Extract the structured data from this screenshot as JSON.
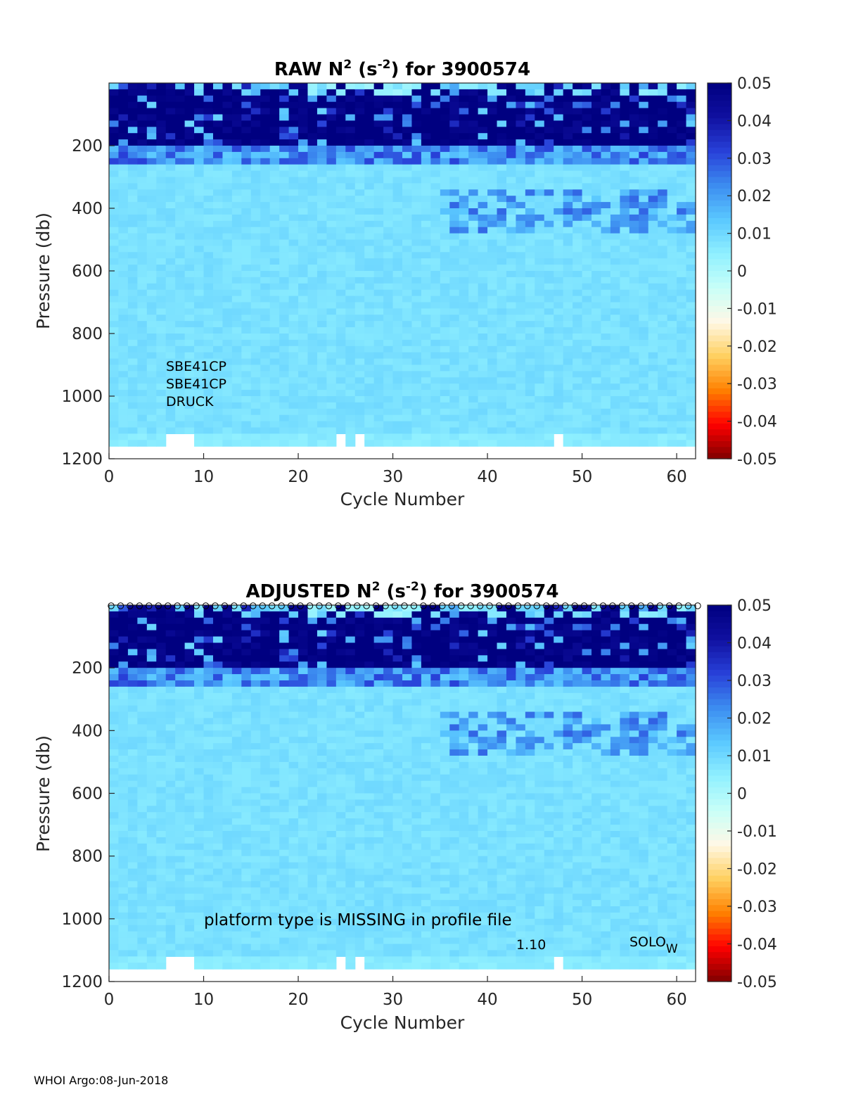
{
  "footer": "WHOI Argo:08-Jun-2018",
  "colors": {
    "cmap": [
      "#800000",
      "#ff0000",
      "#ff8000",
      "#ffd060",
      "#fff8e6",
      "#c8fff8",
      "#8ff0ff",
      "#5ac8ff",
      "#3c8cf0",
      "#2840d8",
      "#1010a0",
      "#000080"
    ]
  },
  "chart_data": [
    {
      "type": "heatmap",
      "title_main": "RAW N",
      "title_sup": "2",
      "title_unit_open": " (s",
      "title_unit_sup": "-2",
      "title_rest": ") for 3900574",
      "xlabel": "Cycle Number",
      "ylabel": "Pressure (db)",
      "xlim": [
        0,
        62
      ],
      "ylim": [
        0,
        1200
      ],
      "y_reversed": true,
      "xticks": [
        0,
        10,
        20,
        30,
        40,
        50,
        60
      ],
      "yticks": [
        200,
        400,
        600,
        800,
        1000,
        1200
      ],
      "colorbar": {
        "min": -0.05,
        "max": 0.05,
        "ticks": [
          "0.05",
          "0.04",
          "0.03",
          "0.02",
          "0.01",
          "0",
          "-0.01",
          "-0.02",
          "-0.03",
          "-0.04",
          "-0.05"
        ]
      },
      "annotations": [
        "SBE41CP",
        "SBE41CP",
        "DRUCK"
      ],
      "missing_bottom_cycles": [
        6,
        7,
        8,
        24,
        26,
        47
      ],
      "qc_marker_row": false
    },
    {
      "type": "heatmap",
      "title_main": "ADJUSTED N",
      "title_sup": "2",
      "title_unit_open": " (s",
      "title_unit_sup": "-2",
      "title_rest": ") for 3900574",
      "xlabel": "Cycle Number",
      "ylabel": "Pressure (db)",
      "xlim": [
        0,
        62
      ],
      "ylim": [
        0,
        1200
      ],
      "y_reversed": true,
      "xticks": [
        0,
        10,
        20,
        30,
        40,
        50,
        60
      ],
      "yticks": [
        200,
        400,
        600,
        800,
        1000,
        1200
      ],
      "colorbar": {
        "min": -0.05,
        "max": 0.05,
        "ticks": [
          "0.05",
          "0.04",
          "0.03",
          "0.02",
          "0.01",
          "0",
          "-0.01",
          "-0.02",
          "-0.03",
          "-0.04",
          "-0.05"
        ]
      },
      "annotations": [
        "platform type is MISSING in profile file",
        "1.10",
        "SOLO",
        "W"
      ],
      "missing_bottom_cycles": [
        6,
        7,
        8,
        24,
        26,
        47
      ],
      "qc_marker_row": true,
      "qc_marker": "o"
    }
  ]
}
